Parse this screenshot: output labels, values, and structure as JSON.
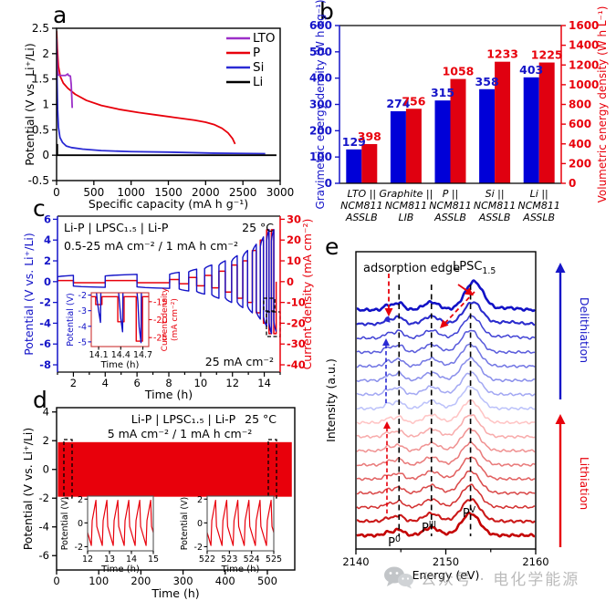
{
  "watermark": {
    "icon": "wechat-icon",
    "text": "公众号 · 电化学能源"
  },
  "panel_labels": {
    "a": "a",
    "b": "b",
    "c": "c",
    "d": "d",
    "e": "e"
  },
  "colors": {
    "axis_blue": "#1414c8",
    "red": "#e8000b",
    "purple": "#9c2fc8",
    "si_blue": "#2a2ad4",
    "black": "#000000",
    "bar_blue": "#0000d8",
    "bar_red": "#e00010"
  },
  "chart_data": [
    {
      "panel": "a",
      "type": "line",
      "xlabel": "Specific capacity (mA h g⁻¹)",
      "ylabel": "Potential (V vs. Li⁺/Li)",
      "xlim": [
        0,
        3000
      ],
      "ylim": [
        -0.5,
        2.5
      ],
      "xticks": [
        0,
        500,
        1000,
        1500,
        2000,
        2500,
        3000
      ],
      "yticks": [
        -0.5,
        0,
        0.5,
        1,
        1.5,
        2,
        2.5
      ],
      "legend": [
        {
          "label": "LTO",
          "color": "#9c2fc8"
        },
        {
          "label": "P",
          "color": "#e8000b"
        },
        {
          "label": "Si",
          "color": "#2a2ad4"
        },
        {
          "label": "Li",
          "color": "#000000"
        }
      ],
      "series": [
        {
          "name": "P",
          "color": "#e8000b",
          "points": [
            [
              0,
              2.45
            ],
            [
              10,
              2.1
            ],
            [
              25,
              1.75
            ],
            [
              50,
              1.55
            ],
            [
              90,
              1.42
            ],
            [
              150,
              1.32
            ],
            [
              250,
              1.2
            ],
            [
              400,
              1.08
            ],
            [
              600,
              0.98
            ],
            [
              850,
              0.9
            ],
            [
              1100,
              0.84
            ],
            [
              1350,
              0.79
            ],
            [
              1600,
              0.74
            ],
            [
              1850,
              0.69
            ],
            [
              2000,
              0.65
            ],
            [
              2120,
              0.6
            ],
            [
              2220,
              0.53
            ],
            [
              2300,
              0.44
            ],
            [
              2360,
              0.33
            ],
            [
              2395,
              0.22
            ]
          ]
        },
        {
          "name": "Si",
          "color": "#2a2ad4",
          "points": [
            [
              0,
              2.28
            ],
            [
              6,
              1.5
            ],
            [
              14,
              0.9
            ],
            [
              25,
              0.55
            ],
            [
              45,
              0.35
            ],
            [
              80,
              0.25
            ],
            [
              130,
              0.18
            ],
            [
              200,
              0.15
            ],
            [
              350,
              0.12
            ],
            [
              600,
              0.09
            ],
            [
              1000,
              0.07
            ],
            [
              1500,
              0.06
            ],
            [
              2100,
              0.04
            ],
            [
              2500,
              0.035
            ],
            [
              2800,
              0.03
            ]
          ]
        },
        {
          "name": "LTO",
          "color": "#9c2fc8",
          "points": [
            [
              0,
              2.3
            ],
            [
              6,
              1.95
            ],
            [
              12,
              1.66
            ],
            [
              20,
              1.58
            ],
            [
              60,
              1.57
            ],
            [
              120,
              1.57
            ],
            [
              150,
              1.6
            ],
            [
              160,
              1.57
            ],
            [
              185,
              1.56
            ],
            [
              196,
              1.4
            ],
            [
              204,
              1.15
            ],
            [
              210,
              0.93
            ]
          ]
        },
        {
          "name": "Li",
          "color": "#000000",
          "points": [
            [
              10,
              0.22
            ],
            [
              10,
              0
            ],
            [
              2950,
              0
            ]
          ]
        }
      ]
    },
    {
      "panel": "b",
      "type": "bar",
      "ylabel_left": "Gravimetric energy density (W h kg⁻¹)",
      "ylabel_right": "Volumetric energy density (W h L⁻¹)",
      "ylim_left": [
        0,
        600
      ],
      "yticks_left": [
        0,
        100,
        200,
        300,
        400,
        500,
        600
      ],
      "ylim_right": [
        0,
        1600
      ],
      "yticks_right": [
        0,
        200,
        400,
        600,
        800,
        1000,
        1200,
        1400,
        1600
      ],
      "categories": [
        [
          "LTO ||",
          "NCM811",
          "ASSLB"
        ],
        [
          "Graphite ||",
          "NCM811",
          "LIB"
        ],
        [
          "P ||",
          "NCM811",
          "ASSLB"
        ],
        [
          "Si ||",
          "NCM811",
          "ASSLB"
        ],
        [
          "Li ||",
          "NCM811",
          "ASSLB"
        ]
      ],
      "series": [
        {
          "name": "Gravimetric energy density (W h kg⁻¹)",
          "axis": "left",
          "color": "#0000d8",
          "values": [
            129,
            274,
            315,
            358,
            403
          ]
        },
        {
          "name": "Volumetric energy density (W h L⁻¹)",
          "axis": "right",
          "color": "#e00010",
          "values": [
            398,
            756,
            1058,
            1233,
            1225
          ]
        }
      ]
    },
    {
      "panel": "c",
      "type": "line-dual",
      "xlabel": "Time (h)",
      "ylabel_left": "Potential (V vs. Li⁺/Li)",
      "ylabel_right": "Current density (mA cm⁻²)",
      "xticks": [
        2,
        4,
        6,
        8,
        10,
        12,
        14
      ],
      "yticks_left": [
        -8,
        -6,
        -4,
        -2,
        0,
        2,
        4,
        6
      ],
      "yticks_right": [
        -40,
        -30,
        -20,
        -10,
        0,
        10,
        20,
        30
      ],
      "labels": {
        "cell": "Li-P | LPSC₁.₅ | Li-P",
        "temp": "25 °C",
        "rate": "0.5-25 mA cm⁻² / 1 mA h cm⁻²",
        "note": "25 mA cm⁻²"
      },
      "half_cycles": [
        {
          "dur": 1.0,
          "v": 0.6,
          "i": 0.5
        },
        {
          "dur": 2.0,
          "v": -0.55,
          "i": -0.5
        },
        {
          "dur": 2.0,
          "v": 0.7,
          "i": 0.5
        },
        {
          "dur": 2.05,
          "v": -0.65,
          "i": -0.5
        },
        {
          "dur": 0.6,
          "v": 0.9,
          "i": 1
        },
        {
          "dur": 0.6,
          "v": -0.9,
          "i": -1
        },
        {
          "dur": 0.5,
          "v": 1.2,
          "i": 2
        },
        {
          "dur": 0.5,
          "v": -1.2,
          "i": -2
        },
        {
          "dur": 0.45,
          "v": 1.6,
          "i": 3
        },
        {
          "dur": 0.45,
          "v": -1.6,
          "i": -3
        },
        {
          "dur": 0.4,
          "v": 2.0,
          "i": 5
        },
        {
          "dur": 0.4,
          "v": -2.0,
          "i": -5
        },
        {
          "dur": 0.35,
          "v": 2.5,
          "i": 8
        },
        {
          "dur": 0.35,
          "v": -2.5,
          "i": -8
        },
        {
          "dur": 0.3,
          "v": 3.0,
          "i": 10
        },
        {
          "dur": 0.3,
          "v": -3.0,
          "i": -10
        },
        {
          "dur": 0.25,
          "v": 3.6,
          "i": 15
        },
        {
          "dur": 0.25,
          "v": -3.6,
          "i": -15
        },
        {
          "dur": 0.2,
          "v": 4.3,
          "i": 20
        },
        {
          "dur": 0.2,
          "v": -4.3,
          "i": -20
        },
        {
          "dur": 0.15,
          "v": 5.0,
          "i": 25
        },
        {
          "dur": 0.15,
          "v": -5.0,
          "i": -25
        },
        {
          "dur": 0.15,
          "v": 5.0,
          "i": 25
        },
        {
          "dur": 0.15,
          "v": -4.8,
          "i": -25
        }
      ],
      "inset": {
        "xlabel": "Time (h)",
        "ylabel_left": "Potential (V)",
        "ylabel_right_1": "Current density",
        "ylabel_right_2": "(mA cm⁻²)",
        "xticks": [
          14.1,
          14.4,
          14.7
        ],
        "yticks_left": [
          -2,
          -3,
          -4,
          -5
        ],
        "yticks_right": [
          -15,
          -20,
          -25
        ],
        "spikes": [
          {
            "t": 14.07,
            "v": -3.75,
            "i": -15.8
          },
          {
            "t": 14.37,
            "v": -4.35,
            "i": -20.6
          },
          {
            "t": 14.62,
            "v": -5.05,
            "i": -26.0
          }
        ]
      }
    },
    {
      "panel": "d",
      "type": "line",
      "xlabel": "Time (h)",
      "ylabel": "Potential (V vs. Li⁺/Li)",
      "xticks": [
        0,
        100,
        200,
        300,
        400,
        500
      ],
      "yticks": [
        -6,
        -4,
        -2,
        0,
        2,
        4
      ],
      "labels": {
        "cell": "Li-P | LPSC₁.₅ | Li-P",
        "temp": "25 °C",
        "rate": "5 mA cm⁻² / 1 mA h cm⁻²"
      },
      "band": {
        "t0": 3,
        "t1": 558,
        "vmax": 1.9,
        "vmin": -1.9,
        "color": "#e8000b"
      },
      "insets": [
        {
          "xticks": [
            12,
            13,
            14,
            15
          ],
          "yticks": [
            2,
            0,
            -2
          ],
          "xlabel": "Time (h)",
          "ylabel": "Potential (V)",
          "xlim": [
            12,
            15
          ]
        },
        {
          "xticks": [
            522,
            523,
            524,
            525
          ],
          "yticks": [
            2,
            0,
            -2
          ],
          "xlabel": "Time (h)",
          "ylabel": "Potential (V)",
          "xlim": [
            522,
            525
          ]
        }
      ]
    },
    {
      "panel": "e",
      "type": "line-stack",
      "xlabel": "Energy (eV)",
      "ylabel": "Intensity (a.u.)",
      "xlim": [
        2140,
        2160
      ],
      "xticks": [
        2140,
        2150,
        2160
      ],
      "xticks_minor": [
        2145,
        2155
      ],
      "n_curves": 17,
      "n_lithiation": 9,
      "n_delithiation": 8,
      "dashed_guides": [
        2144.8,
        2148.4,
        2152.75
      ],
      "peak_labels": [
        {
          "base": "P",
          "sup": "0"
        },
        {
          "base": "P",
          "sup": "III"
        },
        {
          "base": "P",
          "sup": "V"
        }
      ],
      "annotations": {
        "adsorption_edge": "adsorption edge",
        "lpsc_base": "LPSC",
        "lpsc_sub": "1.5",
        "right_top": "Delithiation",
        "right_bottom": "Lithiation"
      },
      "colors": {
        "lith_dark": "#c40000",
        "lith_light": "#ffc4c4",
        "delith_light": "#bcc2fa",
        "delith_dark": "#1212c6"
      }
    }
  ]
}
